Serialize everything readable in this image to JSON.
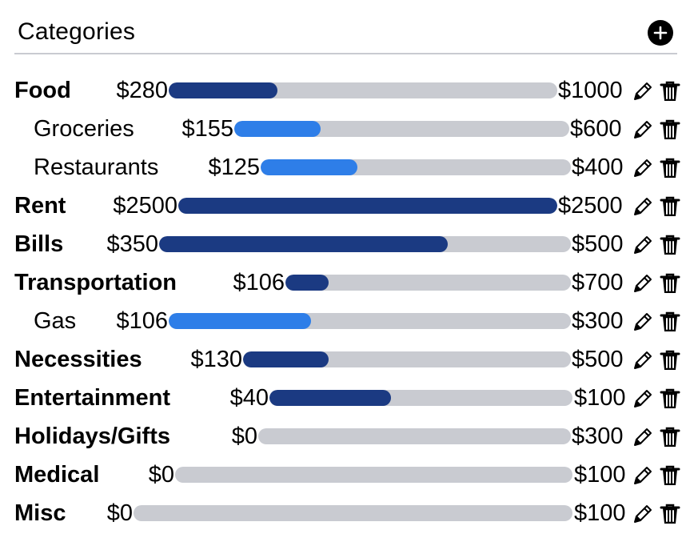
{
  "header": {
    "title": "Categories",
    "add_icon": "plus-circle-icon"
  },
  "colors": {
    "parent_fill": "#1b3a82",
    "child_fill": "#2e7ee8",
    "track": "#c9cbd1"
  },
  "categories": [
    {
      "name": "Food",
      "level": "parent",
      "spent": "$280",
      "budget": "$1000",
      "progress": 0.28
    },
    {
      "name": "Groceries",
      "level": "child",
      "spent": "$155",
      "budget": "$600",
      "progress": 0.258
    },
    {
      "name": "Restaurants",
      "level": "child",
      "spent": "$125",
      "budget": "$400",
      "progress": 0.3125
    },
    {
      "name": "Rent",
      "level": "parent",
      "spent": "$2500",
      "budget": "$2500",
      "progress": 1.0
    },
    {
      "name": "Bills",
      "level": "parent",
      "spent": "$350",
      "budget": "$500",
      "progress": 0.7
    },
    {
      "name": "Transportation",
      "level": "parent",
      "spent": "$106",
      "budget": "$700",
      "progress": 0.151
    },
    {
      "name": "Gas",
      "level": "child",
      "spent": "$106",
      "budget": "$300",
      "progress": 0.353
    },
    {
      "name": "Necessities",
      "level": "parent",
      "spent": "$130",
      "budget": "$500",
      "progress": 0.26
    },
    {
      "name": "Entertainment",
      "level": "parent",
      "spent": "$40",
      "budget": "$100",
      "progress": 0.4
    },
    {
      "name": "Holidays/Gifts",
      "level": "parent",
      "spent": "$0",
      "budget": "$300",
      "progress": 0
    },
    {
      "name": "Medical",
      "level": "parent",
      "spent": "$0",
      "budget": "$100",
      "progress": 0
    },
    {
      "name": "Misc",
      "level": "parent",
      "spent": "$0",
      "budget": "$100",
      "progress": 0
    }
  ]
}
